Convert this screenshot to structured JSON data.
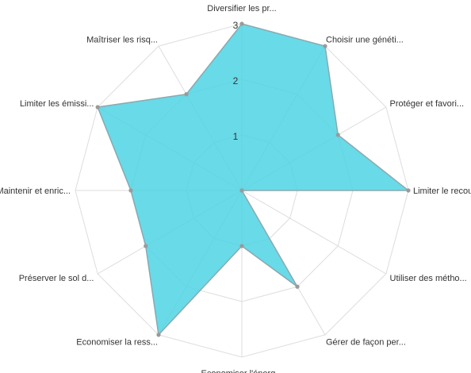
{
  "chart_data": {
    "type": "radar",
    "title": "",
    "categories": [
      "Diversifier les pr...",
      "Choisir une généti...",
      "Protéger et favori...",
      "Limiter le recours...",
      "Utiliser des métho...",
      "Gérer de façon per...",
      "Economiser l'énerg...",
      "Economiser la ress...",
      "Préserver le sol d...",
      "Maintenir et enric...",
      "Limiter les émissi...",
      "Maîtriser les risq..."
    ],
    "series": [
      {
        "values": [
          3,
          3,
          2,
          3,
          0,
          2,
          1,
          3,
          2,
          2,
          3,
          2
        ]
      }
    ],
    "rlim": [
      0,
      3
    ],
    "ticks": [
      "1",
      "2",
      "3"
    ],
    "grid": true,
    "colors": {
      "fill": "#4fd3e3",
      "stroke": "#8aa9b0",
      "grid": "#dddddd"
    }
  }
}
